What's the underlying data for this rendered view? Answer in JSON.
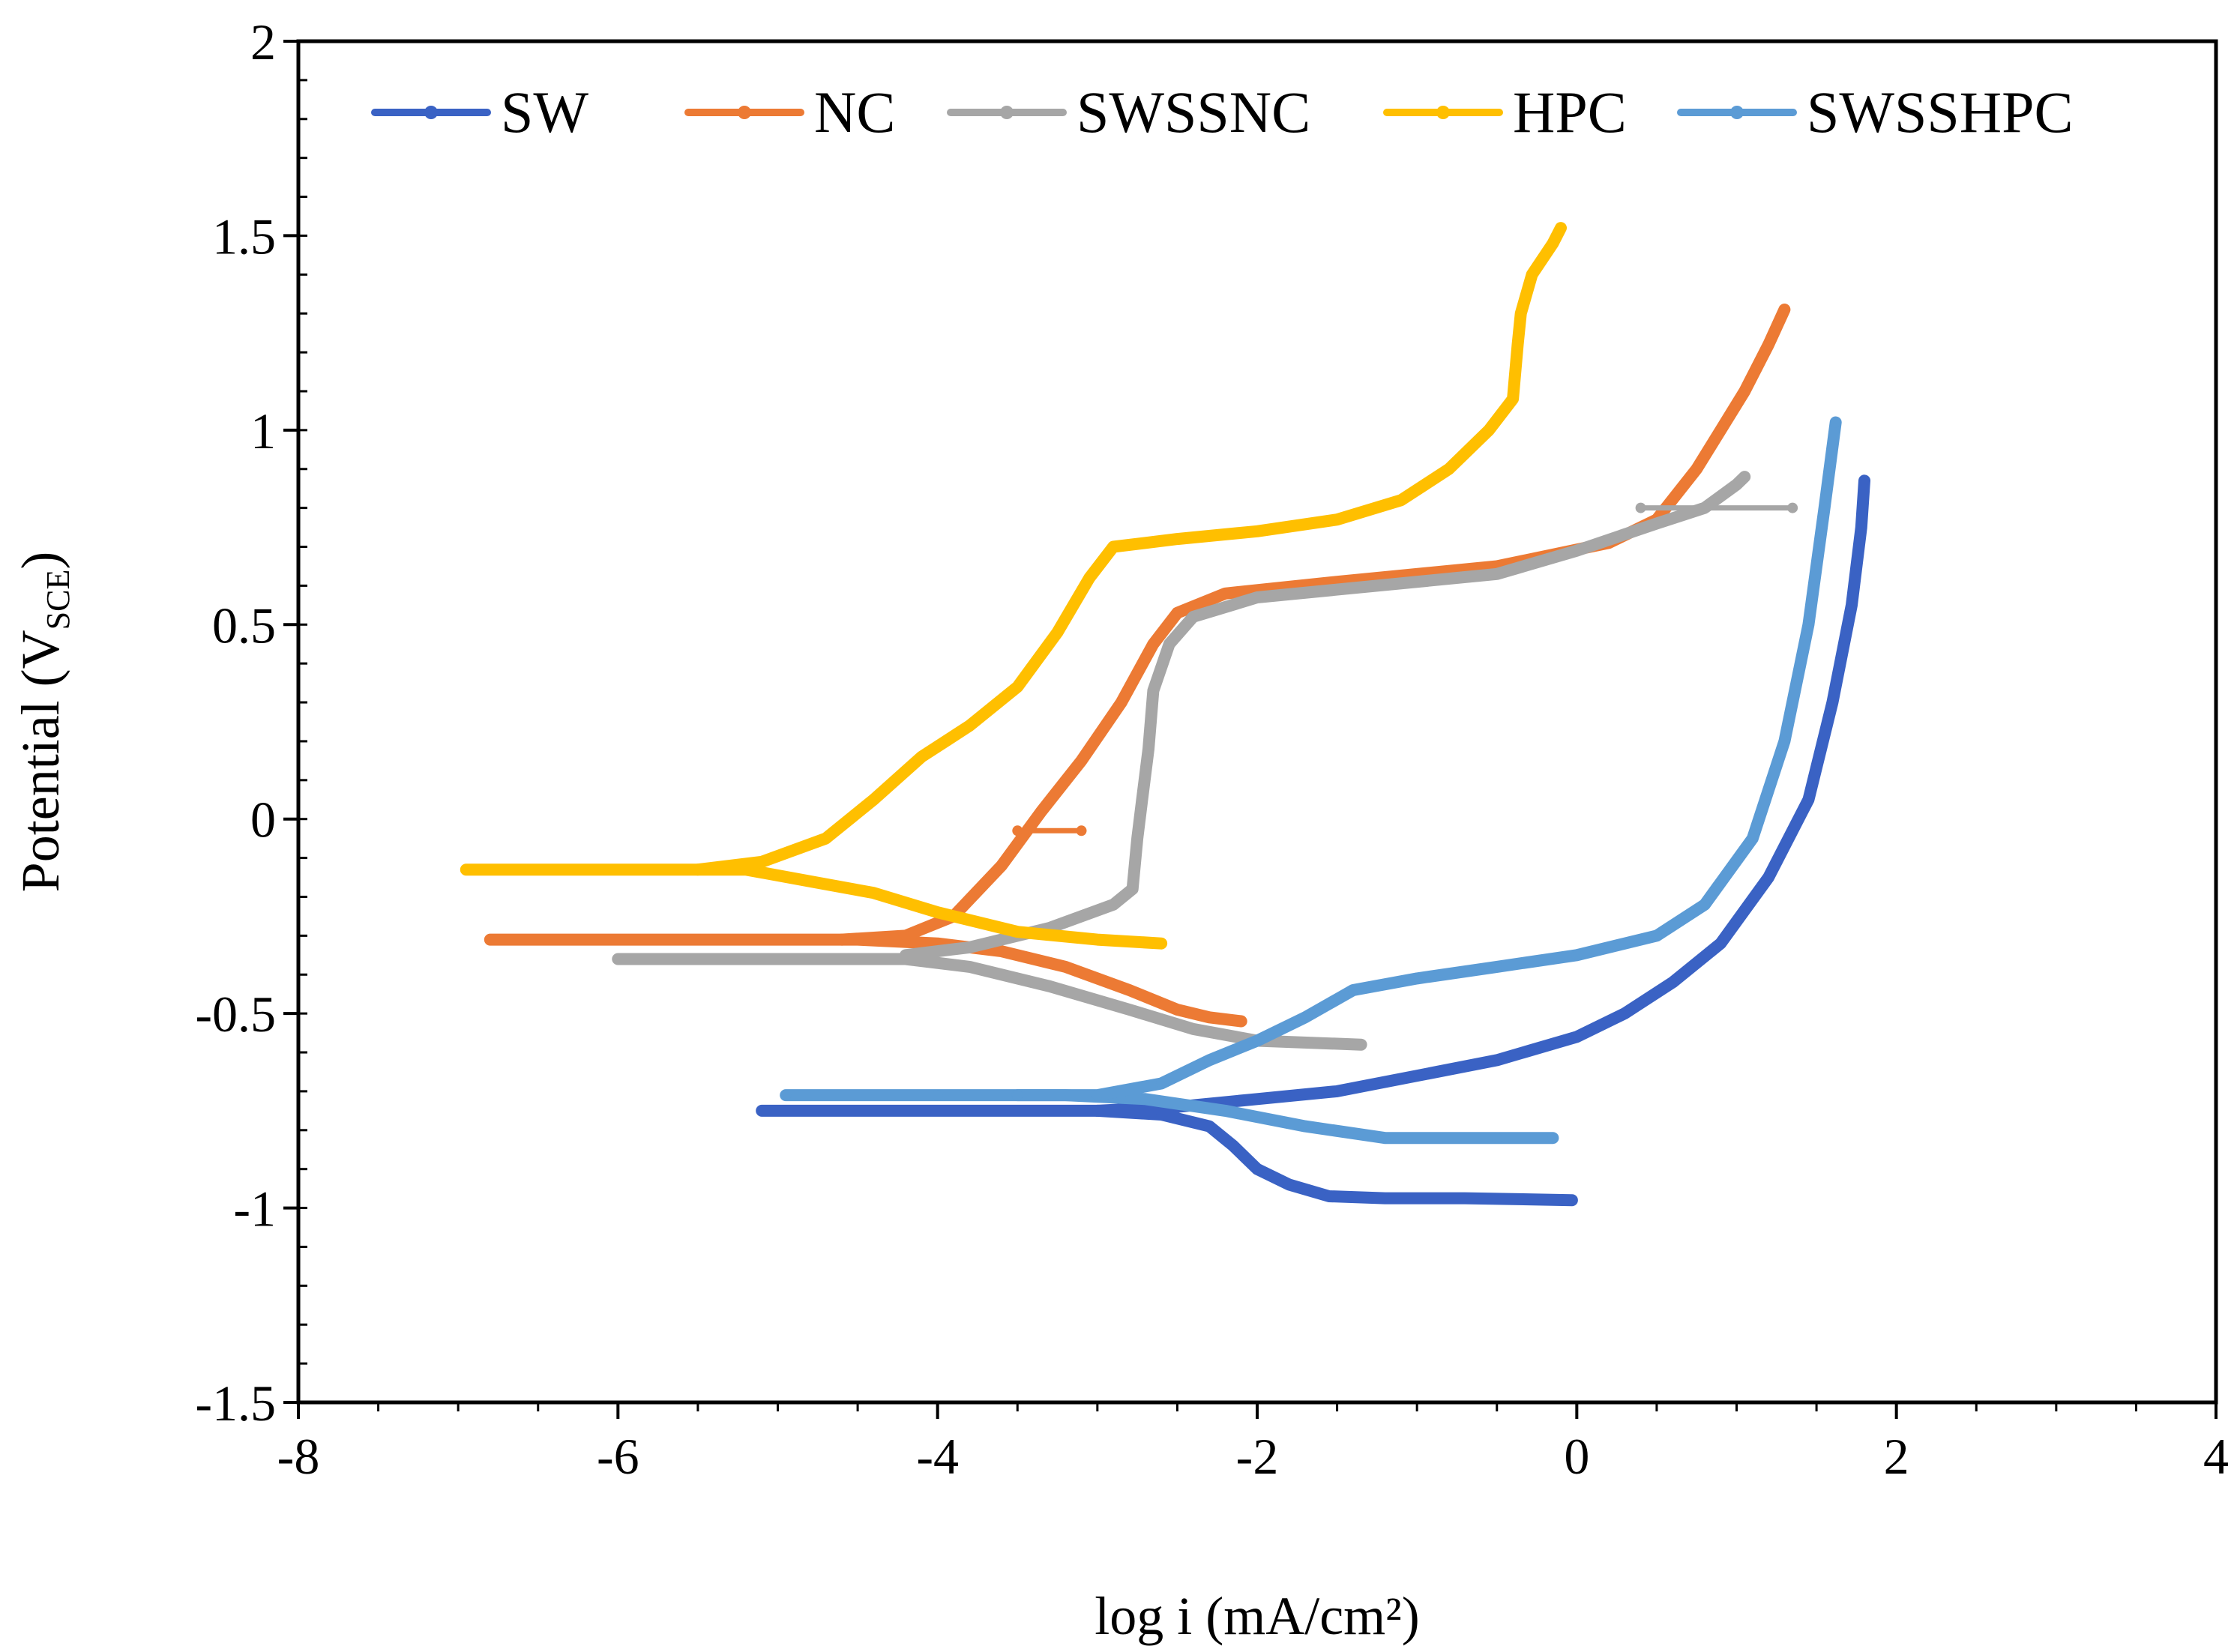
{
  "chart_data": {
    "type": "line",
    "title": "",
    "xlabel": "log i (mA/cm²)",
    "ylabel_main": "Potential (V",
    "ylabel_sub": "SCE",
    "ylabel_close": ")",
    "xlim": [
      -8,
      4
    ],
    "ylim": [
      -1.5,
      2
    ],
    "xticks": [
      -8,
      -6,
      -4,
      -2,
      0,
      2,
      4
    ],
    "yticks": [
      -1.5,
      -1,
      -0.5,
      0,
      0.5,
      1,
      1.5,
      2
    ],
    "xtick_labels": [
      "-8",
      "-6",
      "-4",
      "-2",
      "0",
      "2",
      "4"
    ],
    "ytick_labels": [
      "-1.5",
      "-1",
      "-0.5",
      "0",
      "0.5",
      "1",
      "1.5",
      "2"
    ],
    "legend_position": "top",
    "series": [
      {
        "name": "SW",
        "color": "#3a62c4",
        "cathodic": [
          [
            -5.1,
            -0.75
          ],
          [
            -4.5,
            -0.75
          ],
          [
            -3.8,
            -0.75
          ],
          [
            -3.0,
            -0.75
          ],
          [
            -2.6,
            -0.76
          ],
          [
            -2.3,
            -0.79
          ],
          [
            -2.15,
            -0.84
          ],
          [
            -2.0,
            -0.9
          ],
          [
            -1.8,
            -0.94
          ],
          [
            -1.55,
            -0.97
          ],
          [
            -1.2,
            -0.975
          ],
          [
            -0.7,
            -0.975
          ],
          [
            -0.03,
            -0.98
          ]
        ],
        "anodic": [
          [
            -3.0,
            -0.75
          ],
          [
            -2.5,
            -0.74
          ],
          [
            -2.0,
            -0.72
          ],
          [
            -1.5,
            -0.7
          ],
          [
            -1.0,
            -0.66
          ],
          [
            -0.5,
            -0.62
          ],
          [
            0.0,
            -0.56
          ],
          [
            0.3,
            -0.5
          ],
          [
            0.6,
            -0.42
          ],
          [
            0.9,
            -0.32
          ],
          [
            1.2,
            -0.15
          ],
          [
            1.45,
            0.05
          ],
          [
            1.6,
            0.3
          ],
          [
            1.72,
            0.55
          ],
          [
            1.78,
            0.75
          ],
          [
            1.8,
            0.87
          ]
        ]
      },
      {
        "name": "NC",
        "color": "#ec7a34",
        "cathodic": [
          [
            -6.8,
            -0.31
          ],
          [
            -5.5,
            -0.31
          ],
          [
            -4.5,
            -0.31
          ],
          [
            -4.0,
            -0.32
          ],
          [
            -3.6,
            -0.34
          ],
          [
            -3.2,
            -0.38
          ],
          [
            -2.8,
            -0.44
          ],
          [
            -2.5,
            -0.49
          ],
          [
            -2.3,
            -0.51
          ],
          [
            -2.1,
            -0.52
          ]
        ],
        "anodic": [
          [
            -4.6,
            -0.31
          ],
          [
            -4.2,
            -0.3
          ],
          [
            -3.9,
            -0.25
          ],
          [
            -3.6,
            -0.12
          ],
          [
            -3.35,
            0.02
          ],
          [
            -3.1,
            0.15
          ],
          [
            -2.85,
            0.3
          ],
          [
            -2.65,
            0.45
          ],
          [
            -2.5,
            0.53
          ],
          [
            -2.2,
            0.58
          ],
          [
            -1.5,
            0.61
          ],
          [
            -0.5,
            0.65
          ],
          [
            0.2,
            0.71
          ],
          [
            0.5,
            0.77
          ],
          [
            0.75,
            0.9
          ],
          [
            0.9,
            1.0
          ],
          [
            1.05,
            1.1
          ],
          [
            1.2,
            1.22
          ],
          [
            1.3,
            1.31
          ]
        ],
        "spur": [
          [
            -3.5,
            -0.03
          ],
          [
            -3.1,
            -0.03
          ]
        ]
      },
      {
        "name": "SWSSNC",
        "color": "#a6a6a6",
        "cathodic": [
          [
            -6.0,
            -0.36
          ],
          [
            -5.0,
            -0.36
          ],
          [
            -4.2,
            -0.36
          ],
          [
            -3.8,
            -0.38
          ],
          [
            -3.3,
            -0.43
          ],
          [
            -2.8,
            -0.49
          ],
          [
            -2.4,
            -0.54
          ],
          [
            -2.0,
            -0.57
          ],
          [
            -1.35,
            -0.58
          ]
        ],
        "anodic": [
          [
            -4.2,
            -0.35
          ],
          [
            -3.8,
            -0.33
          ],
          [
            -3.3,
            -0.28
          ],
          [
            -2.9,
            -0.22
          ],
          [
            -2.78,
            -0.18
          ],
          [
            -2.75,
            -0.05
          ],
          [
            -2.72,
            0.05
          ],
          [
            -2.68,
            0.18
          ],
          [
            -2.65,
            0.33
          ],
          [
            -2.55,
            0.45
          ],
          [
            -2.4,
            0.52
          ],
          [
            -2.0,
            0.57
          ],
          [
            -1.5,
            0.59
          ],
          [
            -0.5,
            0.63
          ],
          [
            0.0,
            0.69
          ],
          [
            0.5,
            0.76
          ],
          [
            0.8,
            0.8
          ],
          [
            1.0,
            0.86
          ],
          [
            1.05,
            0.88
          ]
        ],
        "spur": [
          [
            0.4,
            0.8
          ],
          [
            1.35,
            0.8
          ]
        ]
      },
      {
        "name": "HPC",
        "color": "#ffbf00",
        "cathodic": [
          [
            -6.95,
            -0.13
          ],
          [
            -6.0,
            -0.13
          ],
          [
            -5.2,
            -0.13
          ],
          [
            -4.8,
            -0.16
          ],
          [
            -4.4,
            -0.19
          ],
          [
            -4.0,
            -0.24
          ],
          [
            -3.5,
            -0.29
          ],
          [
            -3.0,
            -0.31
          ],
          [
            -2.6,
            -0.32
          ]
        ],
        "anodic": [
          [
            -5.5,
            -0.13
          ],
          [
            -5.1,
            -0.11
          ],
          [
            -4.7,
            -0.05
          ],
          [
            -4.4,
            0.05
          ],
          [
            -4.1,
            0.16
          ],
          [
            -3.8,
            0.24
          ],
          [
            -3.5,
            0.34
          ],
          [
            -3.25,
            0.48
          ],
          [
            -3.05,
            0.62
          ],
          [
            -2.9,
            0.7
          ],
          [
            -2.5,
            0.72
          ],
          [
            -2.0,
            0.74
          ],
          [
            -1.5,
            0.77
          ],
          [
            -1.1,
            0.82
          ],
          [
            -0.8,
            0.9
          ],
          [
            -0.55,
            1.0
          ],
          [
            -0.4,
            1.08
          ],
          [
            -0.37,
            1.22
          ],
          [
            -0.35,
            1.3
          ],
          [
            -0.28,
            1.4
          ],
          [
            -0.15,
            1.48
          ],
          [
            -0.1,
            1.52
          ]
        ]
      },
      {
        "name": "SWSSHPC",
        "color": "#5b9bd5",
        "cathodic": [
          [
            -4.95,
            -0.71
          ],
          [
            -4.0,
            -0.71
          ],
          [
            -3.2,
            -0.71
          ],
          [
            -2.7,
            -0.72
          ],
          [
            -2.2,
            -0.75
          ],
          [
            -1.7,
            -0.79
          ],
          [
            -1.2,
            -0.82
          ],
          [
            -0.5,
            -0.82
          ],
          [
            -0.15,
            -0.82
          ]
        ],
        "anodic": [
          [
            -3.5,
            -0.71
          ],
          [
            -3.0,
            -0.71
          ],
          [
            -2.6,
            -0.68
          ],
          [
            -2.3,
            -0.62
          ],
          [
            -2.0,
            -0.57
          ],
          [
            -1.7,
            -0.51
          ],
          [
            -1.4,
            -0.44
          ],
          [
            -1.0,
            -0.41
          ],
          [
            -0.5,
            -0.38
          ],
          [
            0.0,
            -0.35
          ],
          [
            0.5,
            -0.3
          ],
          [
            0.8,
            -0.22
          ],
          [
            1.1,
            -0.05
          ],
          [
            1.3,
            0.2
          ],
          [
            1.45,
            0.5
          ],
          [
            1.55,
            0.8
          ],
          [
            1.62,
            1.02
          ]
        ]
      }
    ]
  }
}
